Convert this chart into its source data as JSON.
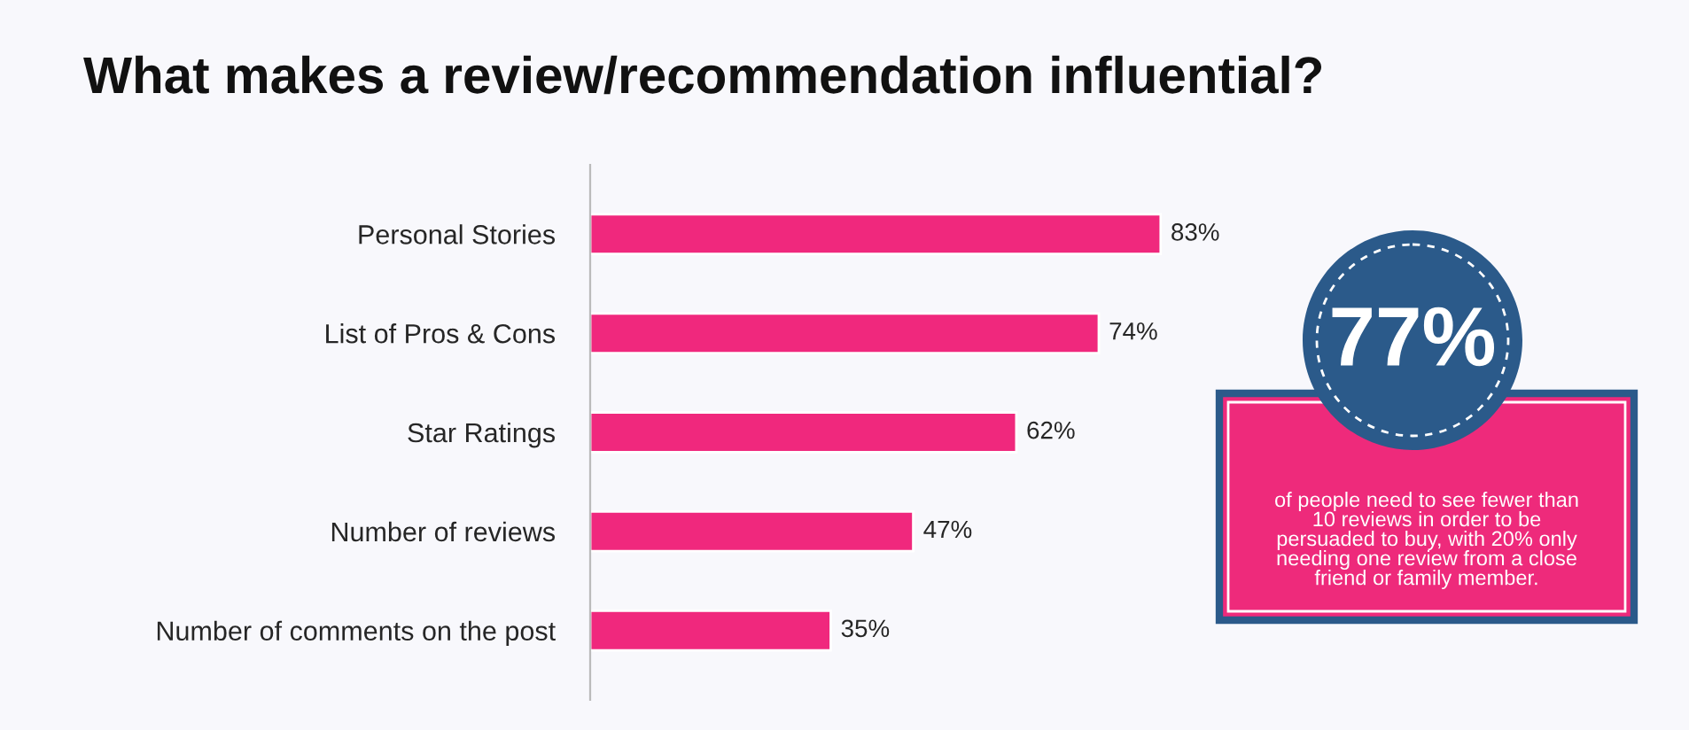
{
  "chart_data": {
    "type": "bar",
    "orientation": "horizontal",
    "title": "What makes a review/recommendation influential?",
    "categories": [
      "Personal Stories",
      "List of Pros & Cons",
      "Star Ratings",
      "Number of reviews",
      "Number of comments on the post"
    ],
    "values": [
      83,
      74,
      62,
      47,
      35
    ],
    "value_labels": [
      "83%",
      "74%",
      "62%",
      "47%",
      "35%"
    ],
    "color": "#f0287d",
    "tick_labels": "y",
    "grid": false,
    "annotations": [
      "77%",
      "of people need to see fewer than\n10 reviews in order to be\npersuaded to buy, with 20% only\nneeding one review from a close\nfriend or family member."
    ]
  }
}
